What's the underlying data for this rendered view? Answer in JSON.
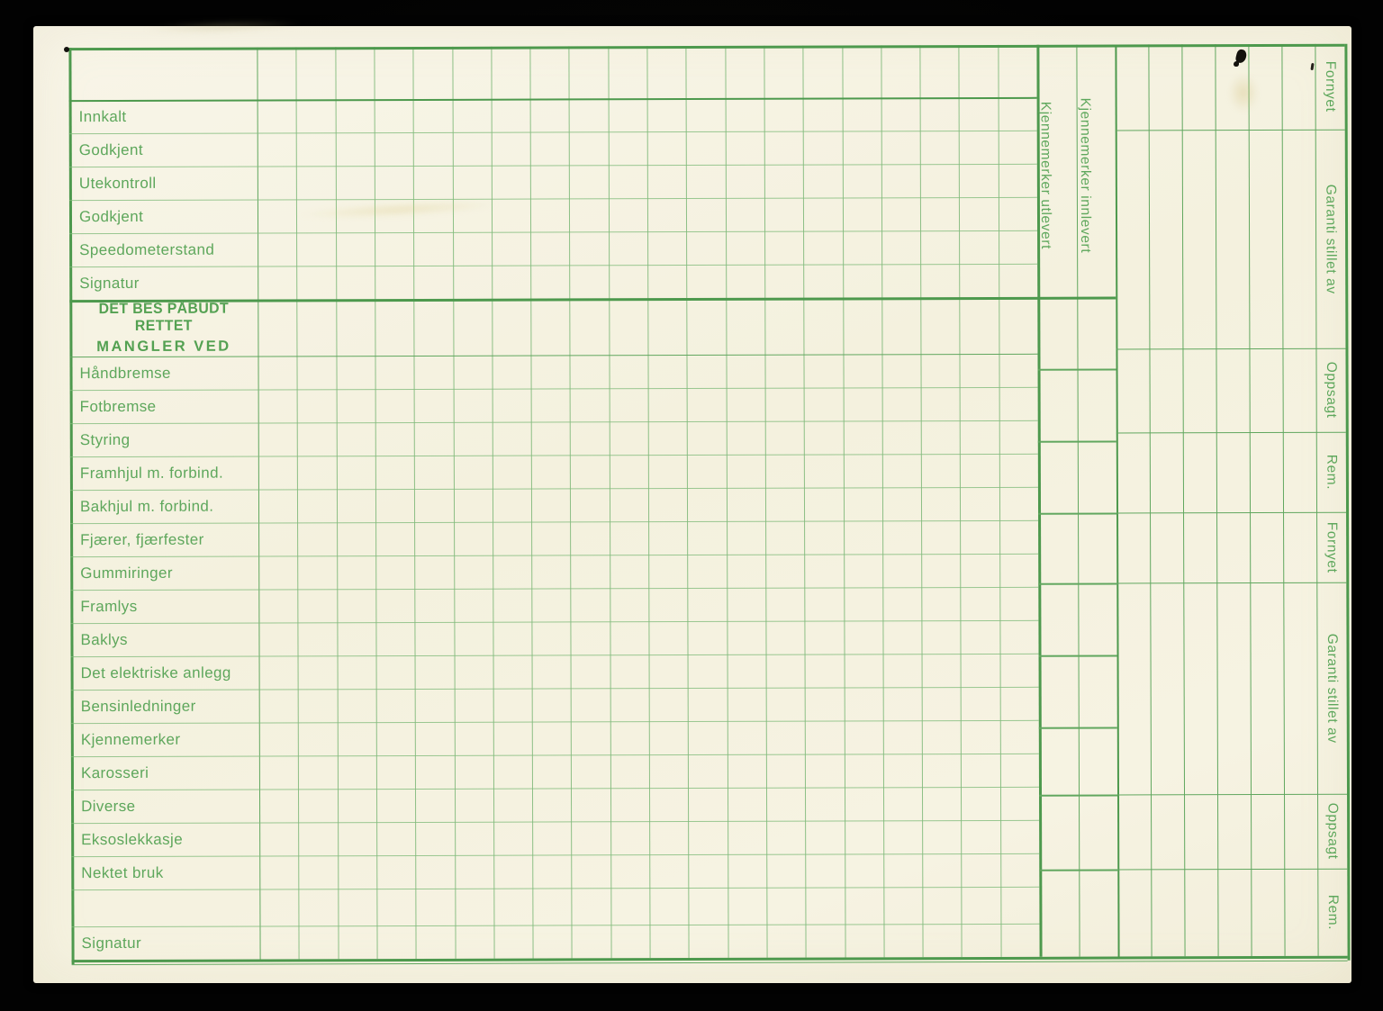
{
  "form": {
    "status_rows": [
      "Innkalt",
      "Godkjent",
      "Utekontroll",
      "Godkjent",
      "Speedometerstand",
      "Signatur"
    ],
    "defect_section_header": {
      "line1": "DET BES PÅBUDT RETTET",
      "line2": "MANGLER VED"
    },
    "defect_rows": [
      "Håndbremse",
      "Fotbremse",
      "Styring",
      "Framhjul m. forbind.",
      "Bakhjul m. forbind.",
      "Fjærer, fjærfester",
      "Gummiringer",
      "Framlys",
      "Baklys",
      "Det elektriske anlegg",
      "Bensinledninger",
      "Kjennemerker",
      "Karosseri",
      "Diverse",
      "Eksoslekkasje",
      "Nektet bruk"
    ],
    "signature_row": "Signatur",
    "plate_columns": [
      "Kjennemerker utlevert",
      "Kjennemerker innlevert"
    ],
    "right_margin_sections": [
      "Fornyet",
      "Garanti stillet av",
      "Oppsagt",
      "Rem.",
      "Fornyet",
      "Garanti stillet av",
      "Oppsagt",
      "Rem."
    ],
    "colors": {
      "line_strong_green": "#4d994d",
      "line_light_green": "#7ab675",
      "text_green": "#5ea75c",
      "paper": "#f6f3e2",
      "background": "#030303"
    }
  }
}
